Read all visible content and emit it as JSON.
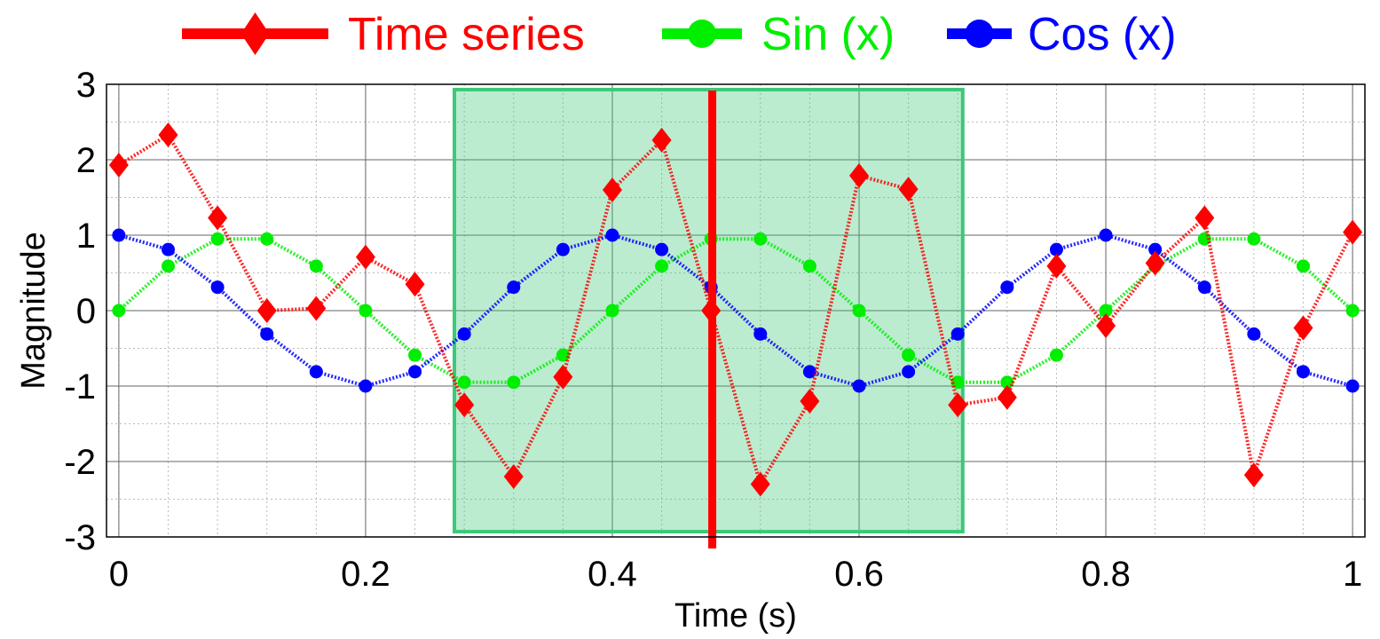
{
  "chart_data": {
    "type": "line",
    "xlabel": "Time (s)",
    "ylabel": "Magnitude",
    "xlim": [
      -0.01,
      1.01
    ],
    "ylim": [
      -3,
      3
    ],
    "x_ticks": [
      0,
      0.2,
      0.4,
      0.6,
      0.8,
      1
    ],
    "x_tick_labels": [
      "0",
      "0.2",
      "0.4",
      "0.6",
      "0.8",
      "1"
    ],
    "y_ticks": [
      3,
      2,
      1,
      0,
      -1,
      -2,
      -3
    ],
    "y_tick_labels": [
      "3",
      "2",
      "1",
      "0",
      "-1",
      "-2",
      "-3"
    ],
    "grid": true,
    "minor_grid": true,
    "legend_position": "top",
    "x": [
      0,
      0.04,
      0.08,
      0.12,
      0.16,
      0.2,
      0.24,
      0.28,
      0.32,
      0.36,
      0.4,
      0.44,
      0.48,
      0.52,
      0.56,
      0.6,
      0.64,
      0.68,
      0.72,
      0.76,
      0.8,
      0.84,
      0.88,
      0.92,
      0.96,
      1
    ],
    "series": [
      {
        "name": "Time series",
        "color": "#ff0000",
        "marker": "diamond",
        "values": [
          1.93,
          2.33,
          1.23,
          0.0,
          0.03,
          0.71,
          0.35,
          -1.25,
          -2.2,
          -0.88,
          1.6,
          2.26,
          0.0,
          -2.3,
          -1.2,
          1.79,
          1.61,
          -1.25,
          -1.15,
          0.59,
          -0.2,
          0.63,
          1.23,
          -2.18,
          -0.23,
          1.04
        ]
      },
      {
        "name": "Sin (x)",
        "color": "#00ee00",
        "marker": "circle",
        "values": [
          0.0,
          0.59,
          0.95,
          0.95,
          0.59,
          0.0,
          -0.59,
          -0.95,
          -0.95,
          -0.59,
          0.0,
          0.59,
          0.95,
          0.95,
          0.59,
          0.0,
          -0.59,
          -0.95,
          -0.95,
          -0.59,
          0.0,
          0.59,
          0.95,
          0.95,
          0.59,
          0.0
        ]
      },
      {
        "name": "Cos (x)",
        "color": "#0000ff",
        "marker": "circle",
        "values": [
          1.0,
          0.81,
          0.31,
          -0.31,
          -0.81,
          -1.0,
          -0.81,
          -0.31,
          0.31,
          0.81,
          1.0,
          0.81,
          0.31,
          -0.31,
          -0.81,
          -1.0,
          -0.81,
          -0.31,
          0.31,
          0.81,
          1.0,
          0.81,
          0.31,
          -0.31,
          -0.81,
          -1.0
        ]
      }
    ],
    "highlight_region": {
      "x_range": [
        0.272,
        0.684
      ],
      "y_range": [
        -2.93,
        2.93
      ],
      "color": "#3cc878"
    },
    "cursor": {
      "x": 0.481,
      "color": "#ff0000"
    }
  }
}
